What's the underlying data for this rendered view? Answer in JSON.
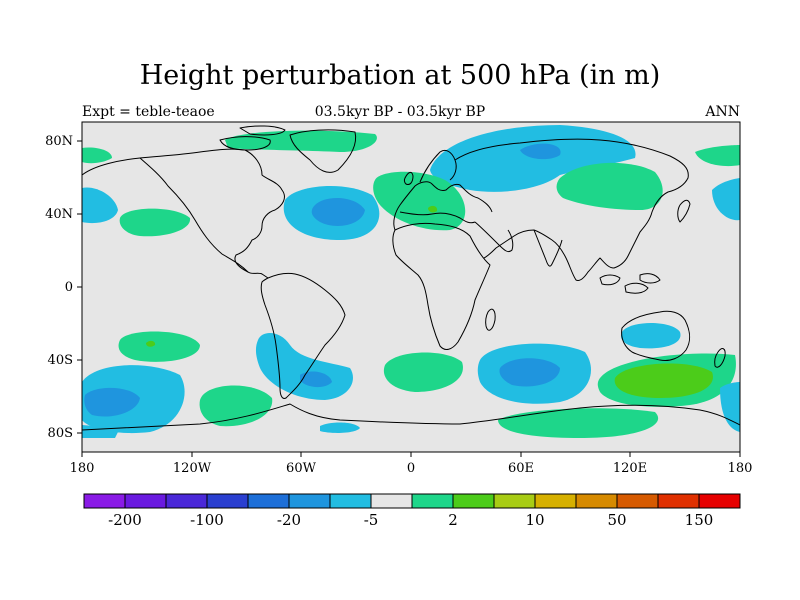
{
  "title": "Height perturbation at 500 hPa (in m)",
  "subtitle_center": "03.5kyr BP - 03.5kyr BP",
  "subtitle_left": "Expt = teble-teaoe",
  "subtitle_right": "ANN",
  "lat_ticks": [
    "80N",
    "40N",
    "0",
    "40S",
    "80S"
  ],
  "lon_ticks": [
    "180",
    "120W",
    "60W",
    "0",
    "60E",
    "120E",
    "180"
  ],
  "colorbar": {
    "colors": [
      "#8a1be6",
      "#6a1ae0",
      "#4a28d8",
      "#2a3fd0",
      "#1d6fd8",
      "#1f95de",
      "#22bde2",
      "#e6e6e6",
      "#1ed68a",
      "#4ccc1a",
      "#a8cc14",
      "#d6b000",
      "#d68a00",
      "#d65a00",
      "#e03000",
      "#e60000"
    ],
    "labels": [
      "-200",
      "-100",
      "-20",
      "-5",
      "2",
      "10",
      "50",
      "150"
    ]
  },
  "palette": {
    "background": "#e6e6e6",
    "neg_light": "#22bde2",
    "neg_mid": "#1f95de",
    "pos_light": "#1ed68a",
    "pos_mid": "#4ccc1a",
    "coast": "#000000"
  }
}
